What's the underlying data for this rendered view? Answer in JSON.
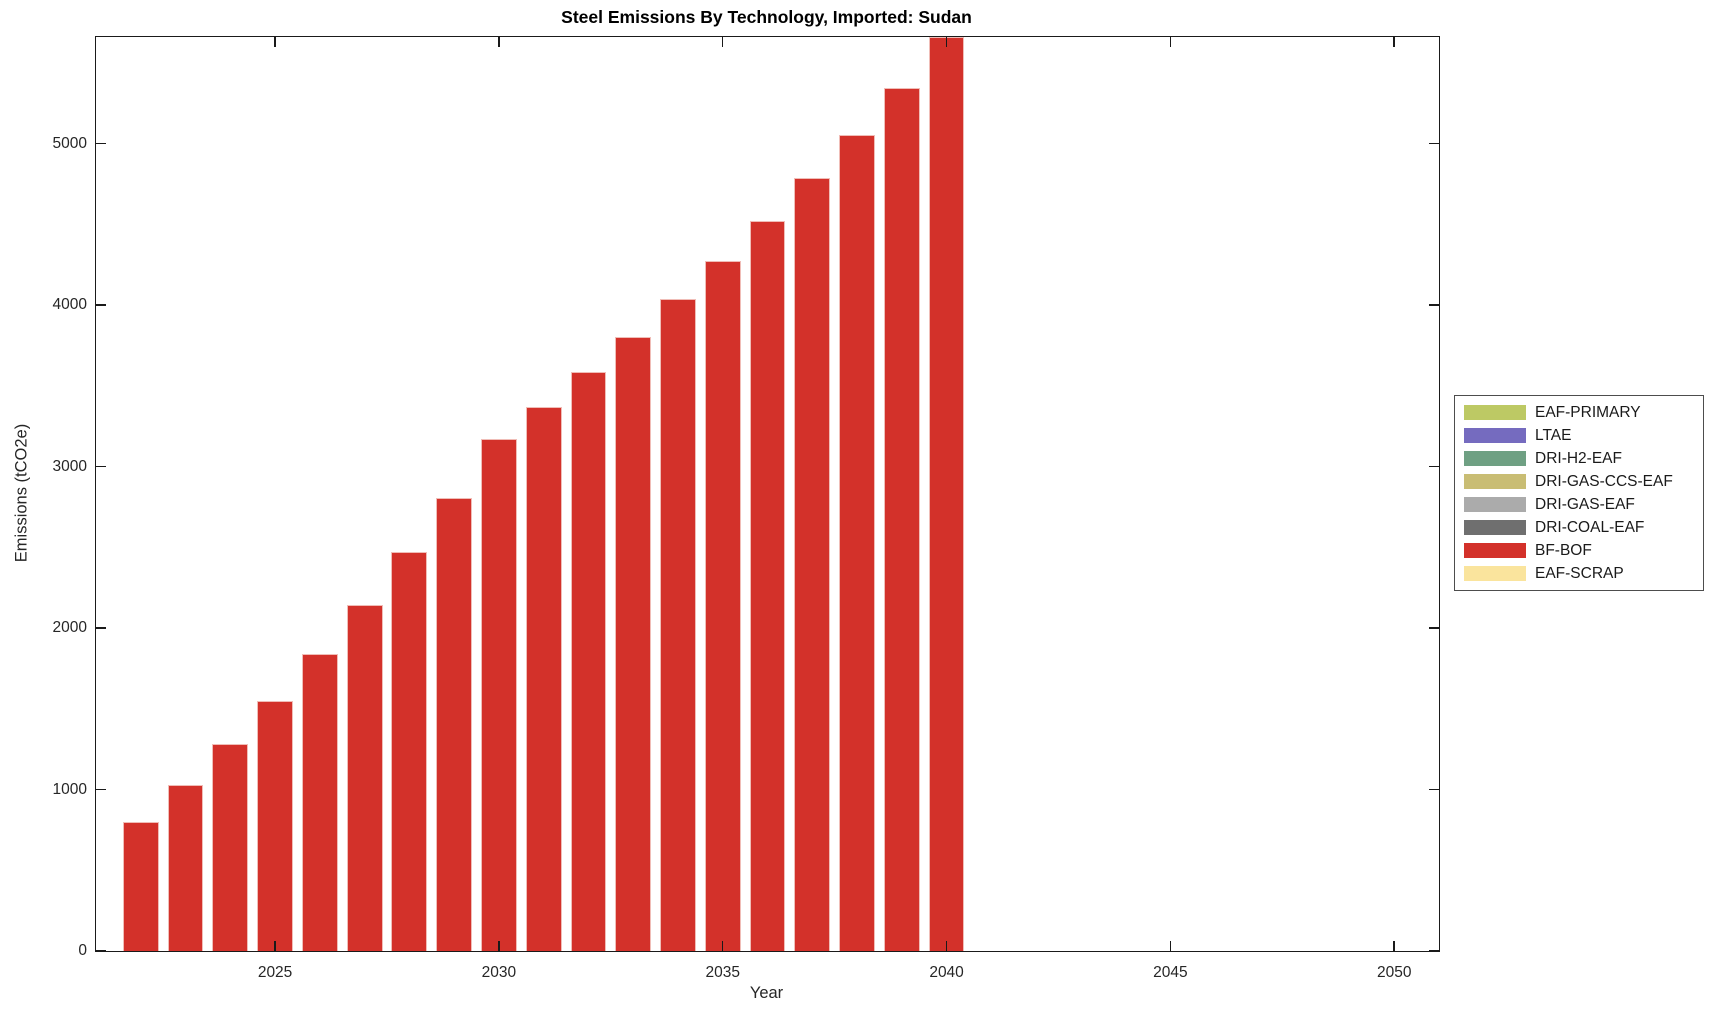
{
  "chart_data": {
    "type": "bar",
    "title": "Steel Emissions By Technology, Imported: Sudan",
    "xlabel": "Year",
    "ylabel": "Emissions (tCO2e)",
    "xlim": [
      2021,
      2051
    ],
    "ylim": [
      0,
      5660
    ],
    "xticks": [
      2025,
      2030,
      2035,
      2040,
      2045,
      2050
    ],
    "yticks": [
      0,
      1000,
      2000,
      3000,
      4000,
      5000
    ],
    "grid": false,
    "bar_width_fraction": 0.8,
    "series": [
      {
        "name": "BF-BOF",
        "color": "#d3312a",
        "x": [
          2022,
          2023,
          2024,
          2025,
          2026,
          2027,
          2028,
          2029,
          2030,
          2031,
          2032,
          2033,
          2034,
          2035,
          2036,
          2037,
          2038,
          2039,
          2040
        ],
        "values": [
          800,
          1030,
          1280,
          1550,
          1840,
          2145,
          2470,
          2805,
          3170,
          3370,
          3585,
          3805,
          4035,
          4270,
          4520,
          4785,
          5055,
          5345,
          5660
        ]
      }
    ],
    "legend": {
      "position": "right-outside",
      "entries": [
        {
          "label": "EAF-PRIMARY",
          "color": "#bdc964"
        },
        {
          "label": "LTAE",
          "color": "#756bbf"
        },
        {
          "label": "DRI-H2-EAF",
          "color": "#6fa083"
        },
        {
          "label": "DRI-GAS-CCS-EAF",
          "color": "#c9bd74"
        },
        {
          "label": "DRI-GAS-EAF",
          "color": "#ababab"
        },
        {
          "label": "DRI-COAL-EAF",
          "color": "#6f6f6f"
        },
        {
          "label": "BF-BOF",
          "color": "#d3312a"
        },
        {
          "label": "EAF-SCRAP",
          "color": "#fae49d"
        }
      ]
    }
  }
}
